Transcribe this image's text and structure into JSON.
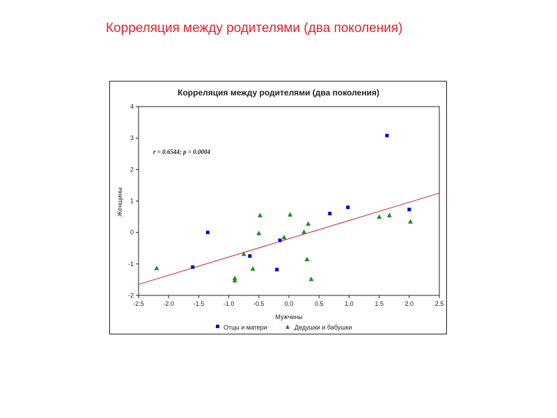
{
  "slide": {
    "title": "Корреляция между родителями (два поколения)"
  },
  "chart_data": {
    "type": "scatter",
    "title": "Корреляция между родителями (два поколения)",
    "xlabel": "Мужчины",
    "ylabel": "Женщины",
    "xlim": [
      -2.5,
      2.5
    ],
    "ylim": [
      -2,
      4
    ],
    "xticks": [
      "-2.5",
      "-2.0",
      "-1.5",
      "-1.0",
      "-0.5",
      "0.0",
      "0.5",
      "1.0",
      "1.5",
      "2.0",
      "2.5"
    ],
    "yticks": [
      "-2",
      "-1",
      "0",
      "1",
      "2",
      "3",
      "4"
    ],
    "annotation": "r = 0.6544; p = 0.0004",
    "grid": false,
    "legend_position": "bottom",
    "series": [
      {
        "name": "Отцы и матери",
        "marker": "square",
        "color": "#0000dd",
        "points": [
          [
            -1.35,
            0.0
          ],
          [
            -1.6,
            -1.1
          ],
          [
            -0.65,
            -0.75
          ],
          [
            -0.2,
            -1.18
          ],
          [
            -0.15,
            -0.25
          ],
          [
            0.68,
            0.6
          ],
          [
            0.98,
            0.8
          ],
          [
            1.63,
            3.08
          ],
          [
            2.0,
            0.73
          ]
        ]
      },
      {
        "name": "Дедушки и бабушки",
        "marker": "triangle",
        "color": "#1e8a1e",
        "points": [
          [
            -2.2,
            -1.13
          ],
          [
            -0.9,
            -1.45
          ],
          [
            -0.9,
            -1.52
          ],
          [
            -0.75,
            -0.68
          ],
          [
            -0.6,
            -1.15
          ],
          [
            -0.5,
            -0.02
          ],
          [
            -0.48,
            0.55
          ],
          [
            -0.08,
            -0.15
          ],
          [
            0.02,
            0.57
          ],
          [
            0.25,
            0.02
          ],
          [
            0.32,
            0.28
          ],
          [
            0.3,
            -0.85
          ],
          [
            0.37,
            -1.48
          ],
          [
            1.5,
            0.5
          ],
          [
            1.67,
            0.55
          ],
          [
            2.02,
            0.35
          ]
        ]
      }
    ],
    "regression": {
      "color": "#cc2222",
      "x": [
        -2.5,
        2.5
      ],
      "y": [
        -1.65,
        1.25
      ]
    }
  }
}
